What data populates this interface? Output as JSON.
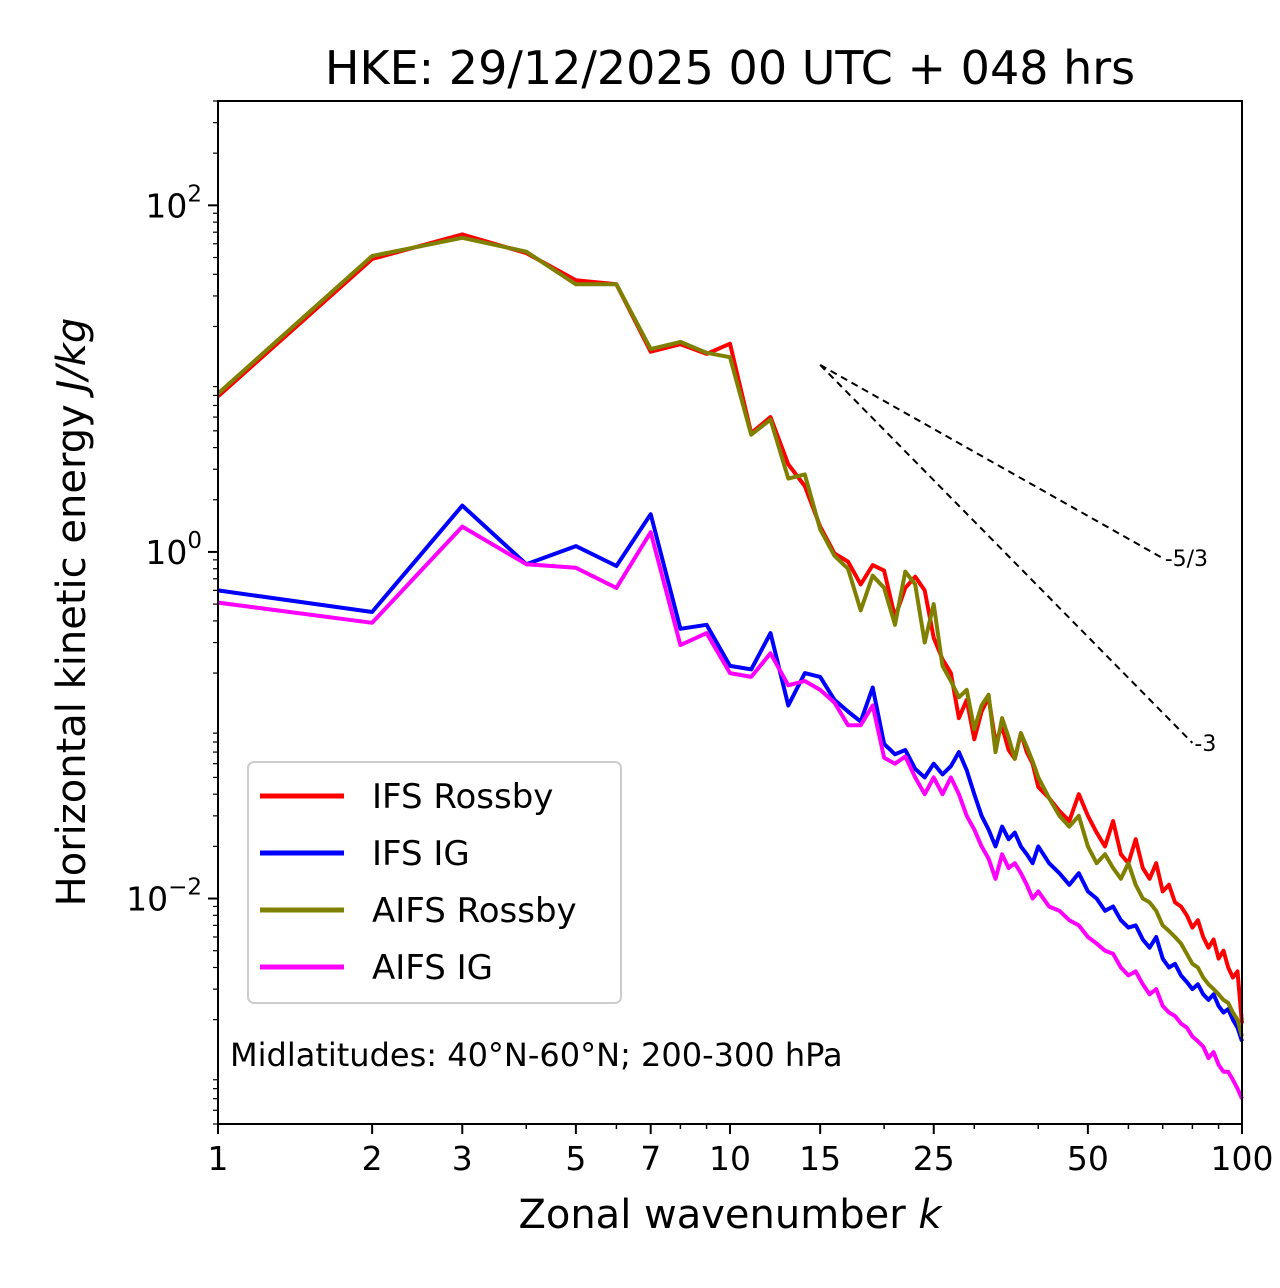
{
  "chart_data": {
    "type": "line",
    "title": "HKE: 29/12/2025 00 UTC + 048 hrs",
    "xlabel": "Zonal wavenumber k",
    "ylabel": "Horizontal kinetic energy J/kg",
    "xscale": "log",
    "yscale": "log",
    "xlim": [
      1,
      100
    ],
    "ylim": [
      0.0005,
      400
    ],
    "xticks": [
      {
        "value": 1,
        "label": "1"
      },
      {
        "value": 2,
        "label": "2"
      },
      {
        "value": 3,
        "label": "3"
      },
      {
        "value": 5,
        "label": "5"
      },
      {
        "value": 7,
        "label": "7"
      },
      {
        "value": 10,
        "label": "10"
      },
      {
        "value": 15,
        "label": "15"
      },
      {
        "value": 25,
        "label": "25"
      },
      {
        "value": 50,
        "label": "50"
      },
      {
        "value": 100,
        "label": "100"
      }
    ],
    "yticks": [
      {
        "value": 100,
        "base": "10",
        "exp": "2"
      },
      {
        "value": 1,
        "base": "10",
        "exp": "0"
      },
      {
        "value": 0.01,
        "base": "10",
        "exp": "−2"
      }
    ],
    "annotation": "Midlatitudes: 40°N-60°N; 200-300 hPa",
    "legend_position": "lower-left",
    "reference_slopes": [
      {
        "label": "-5/3",
        "slope": -1.6667,
        "k_start": 15,
        "k_end": 70,
        "e_start": 12
      },
      {
        "label": "-3",
        "slope": -3,
        "k_start": 15,
        "k_end": 80,
        "e_start": 12
      }
    ],
    "series": [
      {
        "name": "IFS Rossby",
        "color": "#ff0000",
        "x": [
          1,
          2,
          3,
          4,
          5,
          6,
          7,
          8,
          9,
          10,
          11,
          12,
          13,
          14,
          15,
          16,
          17,
          18,
          19,
          20,
          21,
          22,
          23,
          24,
          25,
          26,
          27,
          28,
          29,
          30,
          31,
          32,
          33,
          34,
          35,
          36,
          37,
          38,
          39,
          40,
          42,
          44,
          46,
          48,
          50,
          52,
          54,
          56,
          58,
          60,
          62,
          64,
          66,
          68,
          70,
          72,
          74,
          76,
          78,
          80,
          82,
          84,
          86,
          88,
          90,
          92,
          94,
          96,
          98,
          100
        ],
        "y": [
          7.9,
          49,
          68,
          53,
          37,
          35,
          14.3,
          15.8,
          13.9,
          15.9,
          4.85,
          6.0,
          3.2,
          2.4,
          1.4,
          0.98,
          0.88,
          0.65,
          0.84,
          0.78,
          0.42,
          0.62,
          0.72,
          0.6,
          0.32,
          0.24,
          0.2,
          0.11,
          0.14,
          0.083,
          0.12,
          0.145,
          0.08,
          0.098,
          0.072,
          0.064,
          0.09,
          0.07,
          0.06,
          0.044,
          0.038,
          0.032,
          0.028,
          0.04,
          0.03,
          0.024,
          0.02,
          0.028,
          0.018,
          0.016,
          0.022,
          0.015,
          0.013,
          0.016,
          0.011,
          0.012,
          0.0095,
          0.009,
          0.008,
          0.0068,
          0.0075,
          0.006,
          0.0052,
          0.0058,
          0.0045,
          0.005,
          0.004,
          0.0035,
          0.0038,
          0.0019
        ]
      },
      {
        "name": "IFS IG",
        "color": "#0000ff",
        "x": [
          1,
          2,
          3,
          4,
          5,
          6,
          7,
          8,
          9,
          10,
          11,
          12,
          13,
          14,
          15,
          16,
          17,
          18,
          19,
          20,
          21,
          22,
          23,
          24,
          25,
          26,
          27,
          28,
          29,
          30,
          31,
          32,
          33,
          34,
          35,
          36,
          37,
          38,
          39,
          40,
          42,
          44,
          46,
          48,
          50,
          52,
          54,
          56,
          58,
          60,
          62,
          64,
          66,
          68,
          70,
          72,
          74,
          76,
          78,
          80,
          82,
          84,
          86,
          88,
          90,
          92,
          94,
          96,
          98,
          100
        ],
        "y": [
          0.6,
          0.45,
          1.85,
          0.85,
          1.08,
          0.83,
          1.65,
          0.36,
          0.38,
          0.22,
          0.21,
          0.34,
          0.13,
          0.2,
          0.19,
          0.14,
          0.12,
          0.105,
          0.165,
          0.078,
          0.068,
          0.072,
          0.056,
          0.05,
          0.06,
          0.052,
          0.058,
          0.07,
          0.055,
          0.04,
          0.03,
          0.025,
          0.02,
          0.026,
          0.022,
          0.024,
          0.02,
          0.018,
          0.016,
          0.02,
          0.016,
          0.014,
          0.012,
          0.014,
          0.011,
          0.01,
          0.0085,
          0.009,
          0.0075,
          0.0068,
          0.007,
          0.0058,
          0.0052,
          0.006,
          0.0045,
          0.004,
          0.0042,
          0.0036,
          0.0033,
          0.003,
          0.0032,
          0.0028,
          0.0026,
          0.0028,
          0.0024,
          0.0022,
          0.0023,
          0.002,
          0.0018,
          0.0015
        ]
      },
      {
        "name": "AIFS Rossby",
        "color": "#808000",
        "x": [
          1,
          2,
          3,
          4,
          5,
          6,
          7,
          8,
          9,
          10,
          11,
          12,
          13,
          14,
          15,
          16,
          17,
          18,
          19,
          20,
          21,
          22,
          23,
          24,
          25,
          26,
          27,
          28,
          29,
          30,
          31,
          32,
          33,
          34,
          35,
          36,
          37,
          38,
          39,
          40,
          42,
          44,
          46,
          48,
          50,
          52,
          54,
          56,
          58,
          60,
          62,
          64,
          66,
          68,
          70,
          72,
          74,
          76,
          78,
          80,
          82,
          84,
          86,
          88,
          90,
          92,
          94,
          96,
          98,
          100
        ],
        "y": [
          8.2,
          51,
          65,
          54,
          35,
          35,
          14.8,
          16.3,
          14.1,
          13.3,
          4.75,
          5.8,
          2.65,
          2.8,
          1.35,
          0.95,
          0.8,
          0.46,
          0.73,
          0.62,
          0.38,
          0.77,
          0.65,
          0.3,
          0.5,
          0.22,
          0.18,
          0.145,
          0.16,
          0.095,
          0.13,
          0.15,
          0.07,
          0.11,
          0.085,
          0.064,
          0.09,
          0.075,
          0.062,
          0.05,
          0.038,
          0.03,
          0.026,
          0.03,
          0.02,
          0.016,
          0.018,
          0.015,
          0.013,
          0.016,
          0.012,
          0.01,
          0.0095,
          0.0085,
          0.007,
          0.0065,
          0.006,
          0.0055,
          0.0048,
          0.0042,
          0.004,
          0.0035,
          0.0032,
          0.003,
          0.0028,
          0.0026,
          0.0025,
          0.0022,
          0.002,
          0.0016
        ]
      },
      {
        "name": "AIFS IG",
        "color": "#ff00ff",
        "x": [
          1,
          2,
          3,
          4,
          5,
          6,
          7,
          8,
          9,
          10,
          11,
          12,
          13,
          14,
          15,
          16,
          17,
          18,
          19,
          20,
          21,
          22,
          23,
          24,
          25,
          26,
          27,
          28,
          29,
          30,
          31,
          32,
          33,
          34,
          35,
          36,
          37,
          38,
          39,
          40,
          42,
          44,
          46,
          48,
          50,
          52,
          54,
          56,
          58,
          60,
          62,
          64,
          66,
          68,
          70,
          72,
          74,
          76,
          78,
          80,
          82,
          84,
          86,
          88,
          90,
          92,
          94,
          96,
          98,
          100
        ],
        "y": [
          0.51,
          0.39,
          1.4,
          0.85,
          0.81,
          0.62,
          1.3,
          0.29,
          0.34,
          0.2,
          0.19,
          0.26,
          0.17,
          0.18,
          0.16,
          0.135,
          0.1,
          0.1,
          0.13,
          0.065,
          0.06,
          0.066,
          0.05,
          0.04,
          0.05,
          0.04,
          0.05,
          0.04,
          0.03,
          0.025,
          0.02,
          0.017,
          0.013,
          0.018,
          0.015,
          0.016,
          0.014,
          0.012,
          0.01,
          0.011,
          0.009,
          0.0085,
          0.0075,
          0.007,
          0.006,
          0.0055,
          0.005,
          0.0048,
          0.004,
          0.0036,
          0.0038,
          0.0032,
          0.0028,
          0.003,
          0.0024,
          0.0022,
          0.0021,
          0.0019,
          0.0018,
          0.0016,
          0.0015,
          0.0014,
          0.0012,
          0.0013,
          0.0011,
          0.001,
          0.001,
          0.0009,
          0.0008,
          0.0007
        ]
      }
    ]
  }
}
